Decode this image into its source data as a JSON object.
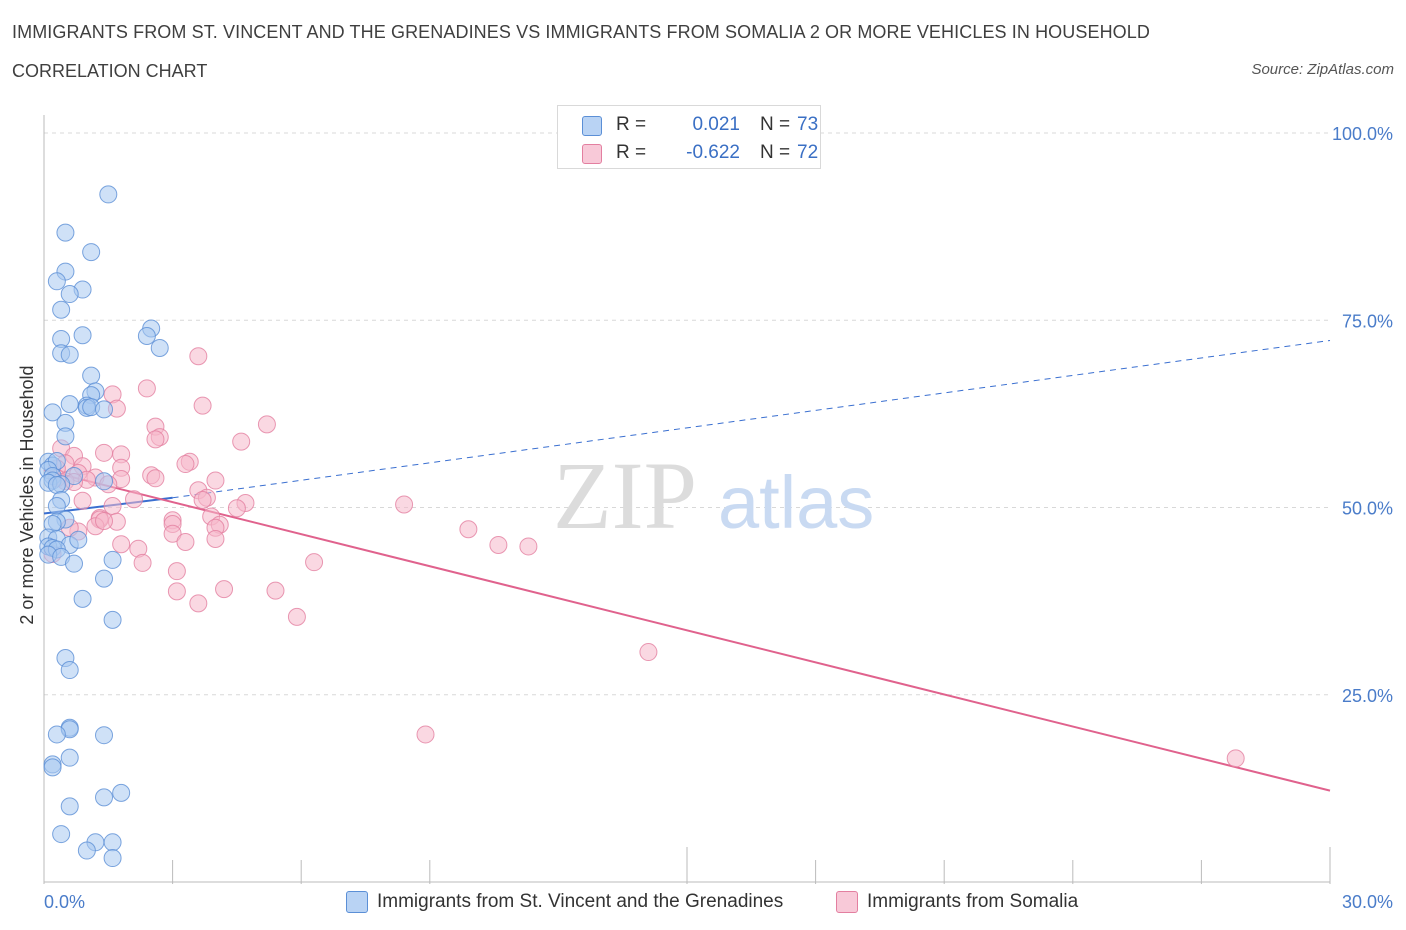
{
  "header": {
    "title": "IMMIGRANTS FROM ST. VINCENT AND THE GRENADINES VS IMMIGRANTS FROM SOMALIA 2 OR MORE VEHICLES IN HOUSEHOLD",
    "subtitle": "CORRELATION CHART",
    "source": "Source: ZipAtlas.com"
  },
  "legend_top": {
    "rows": [
      {
        "r_label": "R =",
        "r_value": "0.021",
        "n_label": "N =",
        "n_value": "73"
      },
      {
        "r_label": "R =",
        "r_value": "-0.622",
        "n_label": "N =",
        "n_value": "72"
      }
    ]
  },
  "watermark": {
    "zip": "ZIP",
    "atlas": "atlas"
  },
  "colors": {
    "blue_fill": "#a8c8f0",
    "blue_stroke": "#5b8fd6",
    "blue_line": "#3a6fd0",
    "pink_fill": "#f5b8cb",
    "pink_stroke": "#e37fa0",
    "pink_line": "#e0628d",
    "axis_text": "#4a7cc9",
    "grid": "#d8d8d8"
  },
  "chart_data": {
    "type": "scatter",
    "title": "IMMIGRANTS FROM ST. VINCENT AND THE GRENADINES VS IMMIGRANTS FROM SOMALIA 2 OR MORE VEHICLES IN HOUSEHOLD",
    "xlabel": "",
    "ylabel": "2 or more Vehicles in Household",
    "xlim": [
      0,
      30
    ],
    "ylim": [
      0,
      100
    ],
    "x_tick_labels": [
      "0.0%",
      "30.0%"
    ],
    "y_tick_labels": [
      "100.0%",
      "75.0%",
      "50.0%",
      "25.0%"
    ],
    "y_ticks": [
      100,
      75,
      50,
      25
    ],
    "x_minor_ticks": [
      0,
      3,
      6,
      9,
      15,
      18,
      21,
      24,
      27,
      30
    ],
    "x_major_ticks": [
      15,
      30
    ],
    "grid": true,
    "legend_position": "bottom-center",
    "series": [
      {
        "name": "Immigrants from St. Vincent and the Grenadines",
        "color": "blue",
        "R": 0.021,
        "N": 73,
        "trend": {
          "x0": 0,
          "y0": 49.2,
          "x1": 3,
          "y1": 51.3,
          "dashed_to_x": 30,
          "dashed_to_y": 72.3
        },
        "points": [
          [
            1.5,
            91.8
          ],
          [
            0.5,
            86.7
          ],
          [
            1.1,
            84.1
          ],
          [
            0.5,
            81.5
          ],
          [
            0.3,
            80.2
          ],
          [
            0.9,
            79.1
          ],
          [
            0.6,
            78.5
          ],
          [
            0.4,
            76.4
          ],
          [
            0.4,
            72.5
          ],
          [
            0.9,
            73.0
          ],
          [
            2.5,
            73.9
          ],
          [
            2.4,
            72.9
          ],
          [
            2.7,
            71.3
          ],
          [
            0.4,
            70.6
          ],
          [
            0.6,
            70.4
          ],
          [
            1.1,
            67.6
          ],
          [
            1.2,
            65.5
          ],
          [
            1.1,
            65.0
          ],
          [
            0.6,
            63.8
          ],
          [
            1.0,
            63.6
          ],
          [
            1.0,
            63.3
          ],
          [
            1.1,
            63.4
          ],
          [
            1.4,
            63.1
          ],
          [
            0.2,
            62.7
          ],
          [
            0.5,
            61.3
          ],
          [
            0.5,
            59.5
          ],
          [
            0.1,
            56.1
          ],
          [
            0.2,
            55.6
          ],
          [
            0.3,
            56.2
          ],
          [
            0.1,
            55.0
          ],
          [
            0.2,
            54.2
          ],
          [
            0.7,
            54.2
          ],
          [
            0.2,
            53.6
          ],
          [
            0.1,
            53.3
          ],
          [
            0.4,
            53.1
          ],
          [
            0.3,
            53.0
          ],
          [
            0.4,
            51.0
          ],
          [
            0.3,
            50.2
          ],
          [
            0.5,
            48.4
          ],
          [
            0.3,
            48.1
          ],
          [
            0.2,
            47.8
          ],
          [
            0.1,
            46.0
          ],
          [
            0.3,
            45.8
          ],
          [
            0.6,
            45.0
          ],
          [
            0.1,
            44.8
          ],
          [
            0.2,
            44.6
          ],
          [
            0.3,
            44.4
          ],
          [
            0.1,
            43.7
          ],
          [
            0.4,
            43.4
          ],
          [
            1.4,
            53.5
          ],
          [
            0.8,
            45.7
          ],
          [
            1.6,
            43.0
          ],
          [
            0.7,
            42.5
          ],
          [
            1.4,
            40.5
          ],
          [
            0.9,
            37.8
          ],
          [
            1.6,
            35.0
          ],
          [
            0.5,
            29.9
          ],
          [
            0.6,
            28.3
          ],
          [
            0.6,
            20.6
          ],
          [
            0.6,
            20.4
          ],
          [
            0.3,
            19.7
          ],
          [
            1.4,
            19.6
          ],
          [
            0.6,
            16.6
          ],
          [
            0.2,
            15.7
          ],
          [
            1.8,
            11.9
          ],
          [
            1.4,
            11.3
          ],
          [
            0.6,
            10.1
          ],
          [
            0.4,
            6.4
          ],
          [
            1.2,
            5.3
          ],
          [
            1.6,
            5.3
          ],
          [
            1.0,
            4.2
          ],
          [
            1.6,
            3.2
          ],
          [
            0.2,
            15.3
          ]
        ]
      },
      {
        "name": "Immigrants from Somalia",
        "color": "pink",
        "R": -0.622,
        "N": 72,
        "trend": {
          "x0": 0,
          "y0": 55.0,
          "x1": 30,
          "y1": 12.2
        },
        "points": [
          [
            3.6,
            70.2
          ],
          [
            2.4,
            65.9
          ],
          [
            1.6,
            65.1
          ],
          [
            3.7,
            63.6
          ],
          [
            1.7,
            63.2
          ],
          [
            5.2,
            61.1
          ],
          [
            2.6,
            60.8
          ],
          [
            2.7,
            59.4
          ],
          [
            2.6,
            59.1
          ],
          [
            4.6,
            58.8
          ],
          [
            0.4,
            57.9
          ],
          [
            1.4,
            57.3
          ],
          [
            1.8,
            57.1
          ],
          [
            0.7,
            56.9
          ],
          [
            3.4,
            56.1
          ],
          [
            3.3,
            55.8
          ],
          [
            0.5,
            55.9
          ],
          [
            0.9,
            55.5
          ],
          [
            1.8,
            55.3
          ],
          [
            0.3,
            55.2
          ],
          [
            0.8,
            54.6
          ],
          [
            2.5,
            54.3
          ],
          [
            2.6,
            53.9
          ],
          [
            1.2,
            54.0
          ],
          [
            1.0,
            53.7
          ],
          [
            0.3,
            53.9
          ],
          [
            4.0,
            53.6
          ],
          [
            1.8,
            53.8
          ],
          [
            0.5,
            53.5
          ],
          [
            0.7,
            53.4
          ],
          [
            1.5,
            53.1
          ],
          [
            3.6,
            52.3
          ],
          [
            3.8,
            51.3
          ],
          [
            2.1,
            51.1
          ],
          [
            3.7,
            51.0
          ],
          [
            0.9,
            50.9
          ],
          [
            4.7,
            50.6
          ],
          [
            8.4,
            50.4
          ],
          [
            1.6,
            50.2
          ],
          [
            4.5,
            49.9
          ],
          [
            3.9,
            48.8
          ],
          [
            1.3,
            48.6
          ],
          [
            1.3,
            48.4
          ],
          [
            3.0,
            48.3
          ],
          [
            1.7,
            48.1
          ],
          [
            3.0,
            47.8
          ],
          [
            4.1,
            47.7
          ],
          [
            1.2,
            47.5
          ],
          [
            4.0,
            47.3
          ],
          [
            9.9,
            47.1
          ],
          [
            0.8,
            46.8
          ],
          [
            3.0,
            46.5
          ],
          [
            4.0,
            45.8
          ],
          [
            1.8,
            45.1
          ],
          [
            10.6,
            45.0
          ],
          [
            11.3,
            44.8
          ],
          [
            2.2,
            44.5
          ],
          [
            0.2,
            43.8
          ],
          [
            6.3,
            42.7
          ],
          [
            2.3,
            42.6
          ],
          [
            3.1,
            41.5
          ],
          [
            4.2,
            39.1
          ],
          [
            5.4,
            38.9
          ],
          [
            3.1,
            38.8
          ],
          [
            3.6,
            37.2
          ],
          [
            5.9,
            35.4
          ],
          [
            14.1,
            30.7
          ],
          [
            8.9,
            19.7
          ],
          [
            27.8,
            16.5
          ],
          [
            1.4,
            48.2
          ],
          [
            3.3,
            45.4
          ],
          [
            0.6,
            47.3
          ]
        ]
      }
    ]
  },
  "bottom_legend": {
    "items": [
      "Immigrants from St. Vincent and the Grenadines",
      "Immigrants from Somalia"
    ]
  }
}
